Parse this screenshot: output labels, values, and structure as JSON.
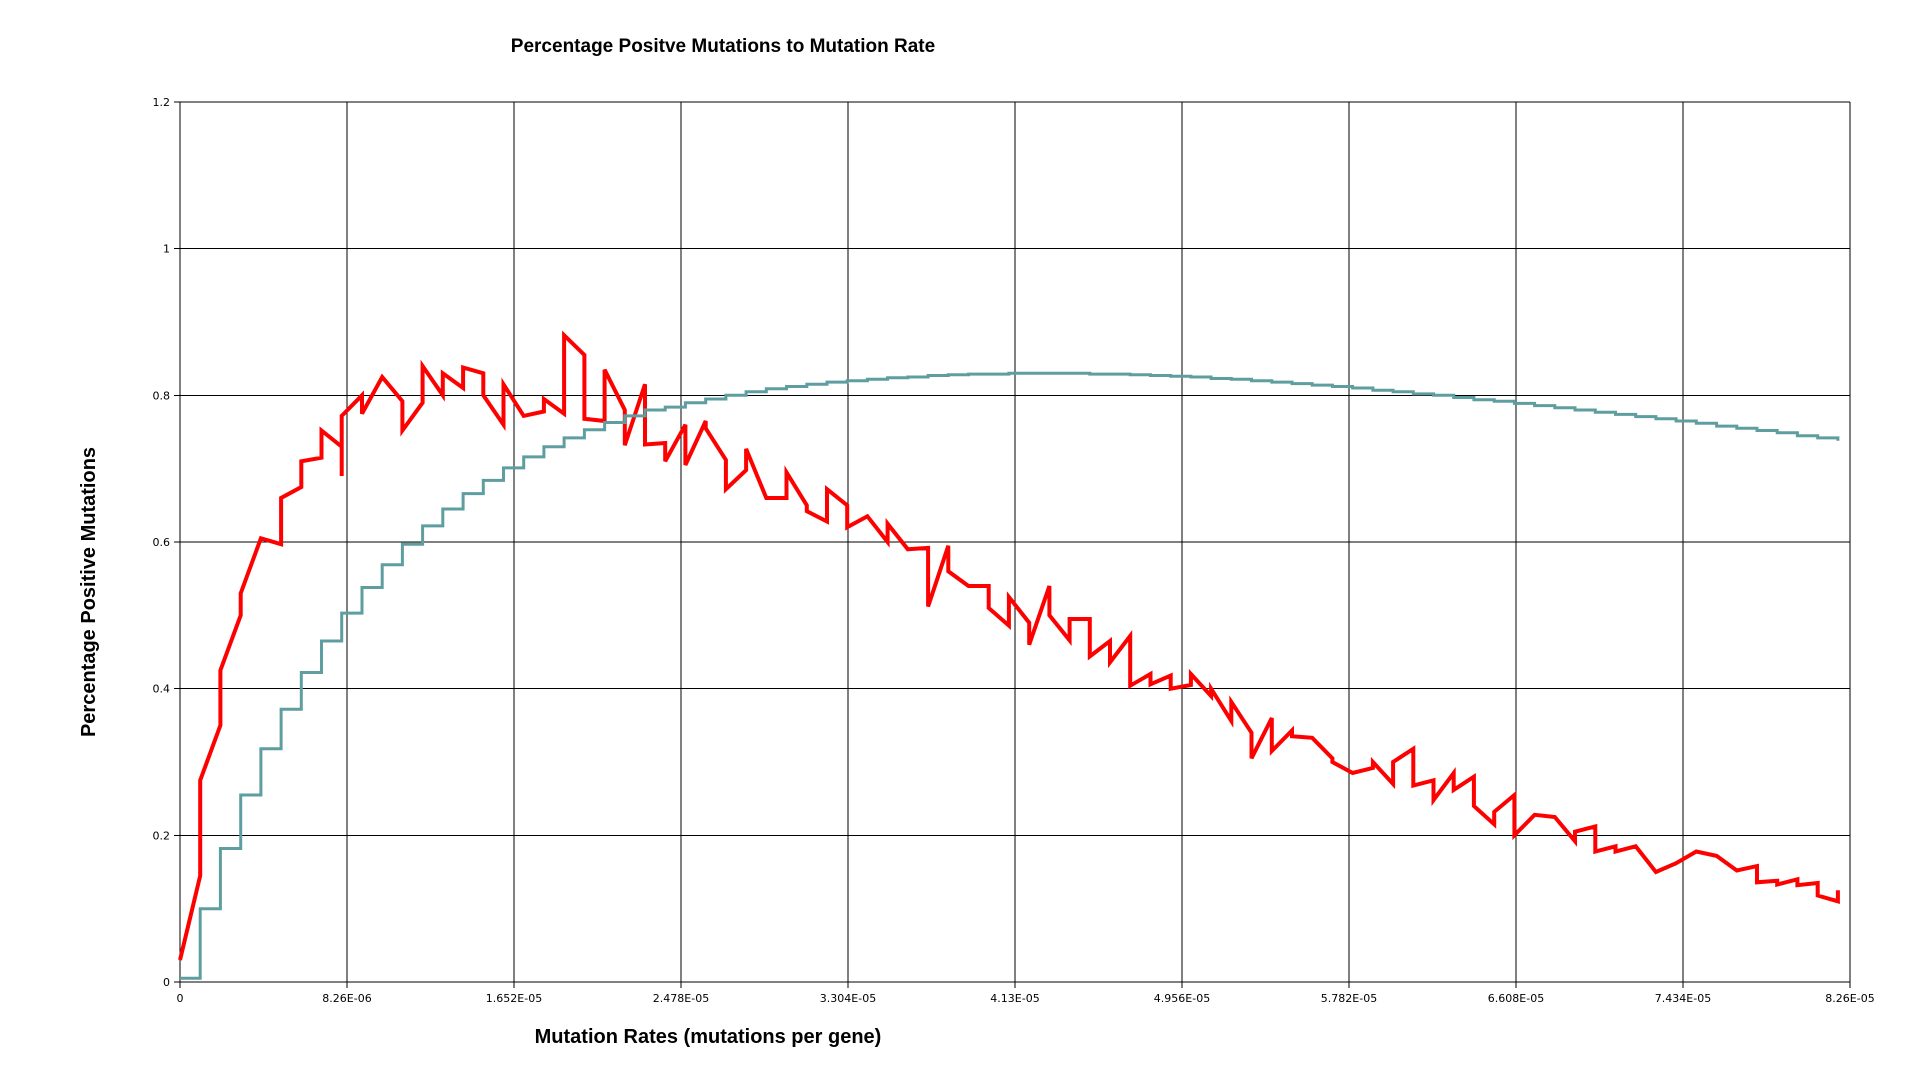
{
  "chart_data": {
    "type": "line",
    "title": "Percentage Positve Mutations to Mutation Rate",
    "xlabel": "Mutation Rates (mutations per gene)",
    "ylabel": "Percentage Positive Mutations",
    "xlim": [
      0,
      8.26e-05
    ],
    "ylim": [
      0,
      1.2
    ],
    "grid": true,
    "legend": "none",
    "x_tick_labels": [
      "0",
      "8.26E-06",
      "1.652E-05",
      "2.478E-05",
      "3.304E-05",
      "4.13E-05",
      "4.956E-05",
      "5.782E-05",
      "6.608E-05",
      "7.434E-05",
      "8.26E-05"
    ],
    "y_tick_labels": [
      "0",
      "0.2",
      "0.4",
      "0.6",
      "0.8",
      "1",
      "1.2"
    ],
    "series": [
      {
        "color": "#ff0000",
        "style": "jagged",
        "values": [
          [
            0,
            0.03
          ],
          [
            1e-06,
            0.145
          ],
          [
            1e-06,
            0.275
          ],
          [
            2e-06,
            0.35
          ],
          [
            2e-06,
            0.425
          ],
          [
            3e-06,
            0.5
          ],
          [
            3e-06,
            0.53
          ],
          [
            4e-06,
            0.605
          ],
          [
            5e-06,
            0.597
          ],
          [
            5e-06,
            0.66
          ],
          [
            6e-06,
            0.675
          ],
          [
            6e-06,
            0.71
          ],
          [
            7e-06,
            0.715
          ],
          [
            7e-06,
            0.752
          ],
          [
            8e-06,
            0.73
          ],
          [
            8e-06,
            0.69
          ],
          [
            8e-06,
            0.772
          ],
          [
            9e-06,
            0.8
          ],
          [
            9e-06,
            0.775
          ],
          [
            1e-05,
            0.825
          ],
          [
            1.1e-05,
            0.792
          ],
          [
            1.1e-05,
            0.752
          ],
          [
            1.2e-05,
            0.79
          ],
          [
            1.2e-05,
            0.84
          ],
          [
            1.3e-05,
            0.8
          ],
          [
            1.3e-05,
            0.83
          ],
          [
            1.4e-05,
            0.81
          ],
          [
            1.4e-05,
            0.838
          ],
          [
            1.5e-05,
            0.83
          ],
          [
            1.5e-05,
            0.8
          ],
          [
            1.6e-05,
            0.76
          ],
          [
            1.6e-05,
            0.815
          ],
          [
            1.7e-05,
            0.772
          ],
          [
            1.8e-05,
            0.778
          ],
          [
            1.8e-05,
            0.795
          ],
          [
            1.9e-05,
            0.775
          ],
          [
            1.9e-05,
            0.882
          ],
          [
            2e-05,
            0.855
          ],
          [
            2e-05,
            0.768
          ],
          [
            2.1e-05,
            0.765
          ],
          [
            2.1e-05,
            0.835
          ],
          [
            2.2e-05,
            0.78
          ],
          [
            2.2e-05,
            0.732
          ],
          [
            2.3e-05,
            0.815
          ],
          [
            2.3e-05,
            0.733
          ],
          [
            2.4e-05,
            0.735
          ],
          [
            2.4e-05,
            0.71
          ],
          [
            2.5e-05,
            0.76
          ],
          [
            2.5e-05,
            0.705
          ],
          [
            2.6e-05,
            0.765
          ],
          [
            2.6e-05,
            0.755
          ],
          [
            2.7e-05,
            0.712
          ],
          [
            2.7e-05,
            0.672
          ],
          [
            2.8e-05,
            0.698
          ],
          [
            2.8e-05,
            0.727
          ],
          [
            2.9e-05,
            0.66
          ],
          [
            3e-05,
            0.66
          ],
          [
            3e-05,
            0.695
          ],
          [
            3.1e-05,
            0.65
          ],
          [
            3.1e-05,
            0.642
          ],
          [
            3.2e-05,
            0.628
          ],
          [
            3.2e-05,
            0.672
          ],
          [
            3.3e-05,
            0.65
          ],
          [
            3.3e-05,
            0.62
          ],
          [
            3.4e-05,
            0.635
          ],
          [
            3.5e-05,
            0.6
          ],
          [
            3.5e-05,
            0.625
          ],
          [
            3.6e-05,
            0.59
          ],
          [
            3.7e-05,
            0.592
          ],
          [
            3.7e-05,
            0.512
          ],
          [
            3.8e-05,
            0.595
          ],
          [
            3.8e-05,
            0.56
          ],
          [
            3.9e-05,
            0.54
          ],
          [
            4e-05,
            0.54
          ],
          [
            4e-05,
            0.51
          ],
          [
            4.1e-05,
            0.486
          ],
          [
            4.1e-05,
            0.525
          ],
          [
            4.2e-05,
            0.49
          ],
          [
            4.2e-05,
            0.46
          ],
          [
            4.3e-05,
            0.54
          ],
          [
            4.3e-05,
            0.5
          ],
          [
            4.4e-05,
            0.466
          ],
          [
            4.4e-05,
            0.495
          ],
          [
            4.5e-05,
            0.495
          ],
          [
            4.5e-05,
            0.444
          ],
          [
            4.6e-05,
            0.465
          ],
          [
            4.6e-05,
            0.436
          ],
          [
            4.7e-05,
            0.472
          ],
          [
            4.7e-05,
            0.404
          ],
          [
            4.8e-05,
            0.42
          ],
          [
            4.8e-05,
            0.406
          ],
          [
            4.9e-05,
            0.418
          ],
          [
            4.9e-05,
            0.4
          ],
          [
            5e-05,
            0.405
          ],
          [
            5e-05,
            0.42
          ],
          [
            5.1e-05,
            0.39
          ],
          [
            5.1e-05,
            0.4
          ],
          [
            5.2e-05,
            0.356
          ],
          [
            5.2e-05,
            0.382
          ],
          [
            5.3e-05,
            0.34
          ],
          [
            5.3e-05,
            0.305
          ],
          [
            5.4e-05,
            0.36
          ],
          [
            5.4e-05,
            0.315
          ],
          [
            5.5e-05,
            0.343
          ],
          [
            5.5e-05,
            0.335
          ],
          [
            5.6e-05,
            0.333
          ],
          [
            5.7e-05,
            0.305
          ],
          [
            5.7e-05,
            0.3
          ],
          [
            5.8e-05,
            0.285
          ],
          [
            5.9e-05,
            0.292
          ],
          [
            5.9e-05,
            0.3
          ],
          [
            6e-05,
            0.27
          ],
          [
            6e-05,
            0.3
          ],
          [
            6.1e-05,
            0.318
          ],
          [
            6.1e-05,
            0.268
          ],
          [
            6.2e-05,
            0.275
          ],
          [
            6.2e-05,
            0.248
          ],
          [
            6.3e-05,
            0.285
          ],
          [
            6.3e-05,
            0.262
          ],
          [
            6.4e-05,
            0.28
          ],
          [
            6.4e-05,
            0.24
          ],
          [
            6.5e-05,
            0.215
          ],
          [
            6.5e-05,
            0.232
          ],
          [
            6.6e-05,
            0.255
          ],
          [
            6.6e-05,
            0.2
          ],
          [
            6.7e-05,
            0.228
          ],
          [
            6.8e-05,
            0.225
          ],
          [
            6.9e-05,
            0.192
          ],
          [
            6.9e-05,
            0.205
          ],
          [
            7e-05,
            0.212
          ],
          [
            7e-05,
            0.178
          ],
          [
            7.1e-05,
            0.185
          ],
          [
            7.1e-05,
            0.178
          ],
          [
            7.2e-05,
            0.185
          ],
          [
            7.3e-05,
            0.15
          ],
          [
            7.4e-05,
            0.162
          ],
          [
            7.5e-05,
            0.178
          ],
          [
            7.6e-05,
            0.172
          ],
          [
            7.7e-05,
            0.152
          ],
          [
            7.8e-05,
            0.158
          ],
          [
            7.8e-05,
            0.136
          ],
          [
            7.9e-05,
            0.138
          ],
          [
            7.9e-05,
            0.133
          ],
          [
            8e-05,
            0.14
          ],
          [
            8e-05,
            0.132
          ],
          [
            8.1e-05,
            0.135
          ],
          [
            8.1e-05,
            0.118
          ],
          [
            8.2e-05,
            0.11
          ],
          [
            8.2e-05,
            0.125
          ]
        ]
      },
      {
        "color": "#5f9ea0",
        "style": "step",
        "values": [
          [
            0,
            0.005
          ],
          [
            1e-06,
            0.058
          ],
          [
            1e-06,
            0.1
          ],
          [
            2e-06,
            0.145
          ],
          [
            2e-06,
            0.182
          ],
          [
            3e-06,
            0.22
          ],
          [
            3e-06,
            0.255
          ],
          [
            4e-06,
            0.288
          ],
          [
            4e-06,
            0.318
          ],
          [
            5e-06,
            0.345
          ],
          [
            5e-06,
            0.372
          ],
          [
            6e-06,
            0.398
          ],
          [
            6e-06,
            0.422
          ],
          [
            7e-06,
            0.444
          ],
          [
            7e-06,
            0.465
          ],
          [
            8e-06,
            0.484
          ],
          [
            8e-06,
            0.503
          ],
          [
            9e-06,
            0.52
          ],
          [
            9e-06,
            0.538
          ],
          [
            1e-05,
            0.554
          ],
          [
            1e-05,
            0.569
          ],
          [
            1.1e-05,
            0.583
          ],
          [
            1.1e-05,
            0.597
          ],
          [
            1.2e-05,
            0.61
          ],
          [
            1.2e-05,
            0.622
          ],
          [
            1.3e-05,
            0.634
          ],
          [
            1.3e-05,
            0.645
          ],
          [
            1.4e-05,
            0.656
          ],
          [
            1.4e-05,
            0.666
          ],
          [
            1.5e-05,
            0.675
          ],
          [
            1.5e-05,
            0.684
          ],
          [
            1.6e-05,
            0.693
          ],
          [
            1.6e-05,
            0.701
          ],
          [
            1.7e-05,
            0.709
          ],
          [
            1.7e-05,
            0.716
          ],
          [
            1.8e-05,
            0.723
          ],
          [
            1.8e-05,
            0.73
          ],
          [
            1.9e-05,
            0.736
          ],
          [
            1.9e-05,
            0.742
          ],
          [
            2e-05,
            0.748
          ],
          [
            2e-05,
            0.753
          ],
          [
            2.1e-05,
            0.758
          ],
          [
            2.1e-05,
            0.763
          ],
          [
            2.2e-05,
            0.768
          ],
          [
            2.2e-05,
            0.772
          ],
          [
            2.3e-05,
            0.776
          ],
          [
            2.3e-05,
            0.78
          ],
          [
            2.4e-05,
            0.784
          ],
          [
            2.5e-05,
            0.79
          ],
          [
            2.6e-05,
            0.795
          ],
          [
            2.7e-05,
            0.8
          ],
          [
            2.8e-05,
            0.805
          ],
          [
            2.9e-05,
            0.809
          ],
          [
            3e-05,
            0.812
          ],
          [
            3.1e-05,
            0.815
          ],
          [
            3.2e-05,
            0.818
          ],
          [
            3.3e-05,
            0.82
          ],
          [
            3.4e-05,
            0.822
          ],
          [
            3.5e-05,
            0.824
          ],
          [
            3.6e-05,
            0.825
          ],
          [
            3.7e-05,
            0.827
          ],
          [
            3.8e-05,
            0.828
          ],
          [
            3.9e-05,
            0.829
          ],
          [
            4e-05,
            0.829
          ],
          [
            4.1e-05,
            0.83
          ],
          [
            4.2e-05,
            0.83
          ],
          [
            4.3e-05,
            0.83
          ],
          [
            4.4e-05,
            0.83
          ],
          [
            4.5e-05,
            0.829
          ],
          [
            4.6e-05,
            0.829
          ],
          [
            4.7e-05,
            0.828
          ],
          [
            4.8e-05,
            0.827
          ],
          [
            4.9e-05,
            0.826
          ],
          [
            5e-05,
            0.825
          ],
          [
            5.1e-05,
            0.823
          ],
          [
            5.2e-05,
            0.822
          ],
          [
            5.3e-05,
            0.82
          ],
          [
            5.4e-05,
            0.818
          ],
          [
            5.5e-05,
            0.816
          ],
          [
            5.6e-05,
            0.814
          ],
          [
            5.7e-05,
            0.812
          ],
          [
            5.8e-05,
            0.81
          ],
          [
            5.9e-05,
            0.807
          ],
          [
            6e-05,
            0.805
          ],
          [
            6.1e-05,
            0.802
          ],
          [
            6.2e-05,
            0.8
          ],
          [
            6.3e-05,
            0.797
          ],
          [
            6.4e-05,
            0.794
          ],
          [
            6.5e-05,
            0.792
          ],
          [
            6.6e-05,
            0.789
          ],
          [
            6.7e-05,
            0.786
          ],
          [
            6.8e-05,
            0.783
          ],
          [
            6.9e-05,
            0.78
          ],
          [
            7e-05,
            0.777
          ],
          [
            7.1e-05,
            0.774
          ],
          [
            7.2e-05,
            0.771
          ],
          [
            7.3e-05,
            0.768
          ],
          [
            7.4e-05,
            0.765
          ],
          [
            7.5e-05,
            0.762
          ],
          [
            7.6e-05,
            0.758
          ],
          [
            7.7e-05,
            0.755
          ],
          [
            7.8e-05,
            0.752
          ],
          [
            7.9e-05,
            0.749
          ],
          [
            8e-05,
            0.745
          ],
          [
            8.1e-05,
            0.742
          ],
          [
            8.2e-05,
            0.738
          ]
        ]
      }
    ]
  }
}
